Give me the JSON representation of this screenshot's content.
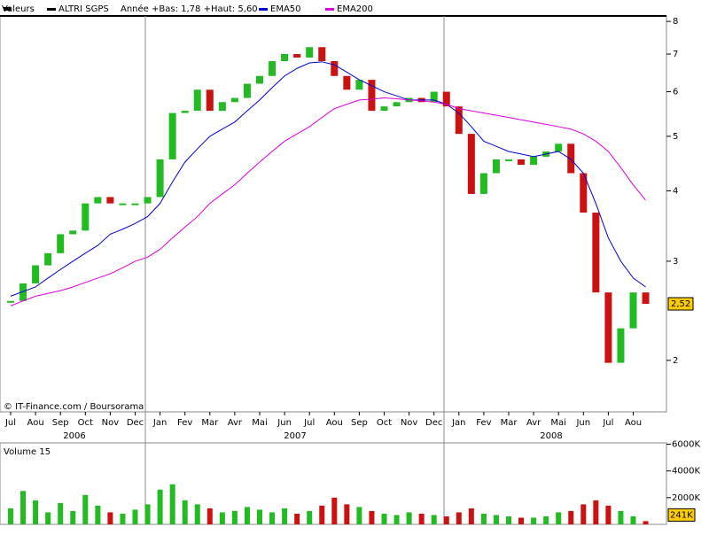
{
  "chart_data": {
    "type": "stock",
    "legend": {
      "values_label": "Valeurs",
      "name": "ALTRI SGPS",
      "range": "Année +Bas: 1,78 +Haut: 5,60"
    },
    "credit": "© IT-Finance.com / Boursorama",
    "categories": [
      "Jul",
      null,
      "Aou",
      null,
      "Sep",
      null,
      "Oct",
      null,
      "Nov",
      null,
      "Dec",
      null,
      "Jan",
      null,
      "Fev",
      null,
      "Mar",
      null,
      "Avr",
      null,
      "Mai",
      null,
      "Jun",
      null,
      "Jul",
      null,
      "Aou",
      null,
      "Sep",
      null,
      "Oct",
      null,
      "Nov",
      null,
      "Dec",
      null,
      "Jan",
      null,
      "Fev",
      null,
      "Mar",
      null,
      "Avr",
      null,
      "Mai",
      null,
      "Jun",
      null,
      "Jul",
      null,
      "Aou",
      null
    ],
    "years": [
      "2006",
      "2007",
      "2008"
    ],
    "ylim": [
      1.62,
      8.18
    ],
    "yticks": [
      2,
      3,
      4,
      5,
      6,
      7,
      8
    ],
    "log_scale": true,
    "up_color": "#22bb22",
    "down_color": "#cc1111",
    "price": {
      "last_label": "2,52",
      "values": [
        2.55,
        2.74,
        2.95,
        3.1,
        3.35,
        3.4,
        3.8,
        3.9,
        3.8,
        3.8,
        3.8,
        3.9,
        4.55,
        5.5,
        5.55,
        6.05,
        5.55,
        5.75,
        5.85,
        6.2,
        6.4,
        6.8,
        7.0,
        6.9,
        7.2,
        6.8,
        6.4,
        6.05,
        6.3,
        5.55,
        5.65,
        5.75,
        5.85,
        5.75,
        6.0,
        5.65,
        5.05,
        3.95,
        4.3,
        4.55,
        4.55,
        4.45,
        4.6,
        4.7,
        4.85,
        4.3,
        3.66,
        2.64,
        1.98,
        2.28,
        2.64,
        2.52
      ]
    },
    "series": [
      {
        "name": "EMA50",
        "color": "#0000cc",
        "values": [
          2.6,
          2.65,
          2.7,
          2.8,
          2.9,
          3.0,
          3.1,
          3.2,
          3.35,
          3.42,
          3.5,
          3.6,
          3.8,
          4.15,
          4.5,
          4.75,
          5.0,
          5.15,
          5.3,
          5.55,
          5.8,
          6.1,
          6.4,
          6.6,
          6.75,
          6.78,
          6.7,
          6.5,
          6.3,
          6.15,
          6.0,
          5.9,
          5.8,
          5.8,
          5.8,
          5.7,
          5.5,
          5.2,
          4.9,
          4.8,
          4.7,
          4.65,
          4.6,
          4.65,
          4.7,
          4.55,
          4.3,
          3.8,
          3.3,
          3.0,
          2.8,
          2.7
        ]
      },
      {
        "name": "EMA200",
        "color": "#dd00dd",
        "values": [
          2.5,
          2.55,
          2.6,
          2.63,
          2.66,
          2.7,
          2.75,
          2.8,
          2.85,
          2.92,
          3.0,
          3.05,
          3.15,
          3.3,
          3.45,
          3.6,
          3.8,
          3.95,
          4.1,
          4.3,
          4.5,
          4.7,
          4.9,
          5.05,
          5.2,
          5.4,
          5.6,
          5.7,
          5.8,
          5.82,
          5.85,
          5.83,
          5.8,
          5.78,
          5.75,
          5.7,
          5.6,
          5.55,
          5.5,
          5.45,
          5.4,
          5.35,
          5.3,
          5.25,
          5.2,
          5.15,
          5.05,
          4.9,
          4.7,
          4.4,
          4.1,
          3.85
        ]
      }
    ],
    "volume": {
      "title": "Volume 15",
      "last_label": "241K",
      "ylim": [
        0,
        6100
      ],
      "yticks": [
        {
          "value": 2000,
          "label": "2000K"
        },
        {
          "value": 4000,
          "label": "4000K"
        },
        {
          "value": 6000,
          "label": "6000K"
        }
      ],
      "values": [
        1200,
        2500,
        1800,
        900,
        1600,
        1000,
        2200,
        1400,
        900,
        800,
        1100,
        1500,
        2600,
        3000,
        1800,
        1500,
        1200,
        900,
        1000,
        1300,
        1100,
        900,
        1200,
        800,
        1000,
        1400,
        2000,
        1500,
        1300,
        1000,
        800,
        700,
        900,
        800,
        700,
        600,
        900,
        1200,
        800,
        700,
        600,
        500,
        500,
        600,
        900,
        1000,
        1500,
        1800,
        1400,
        1000,
        600,
        241
      ]
    }
  }
}
